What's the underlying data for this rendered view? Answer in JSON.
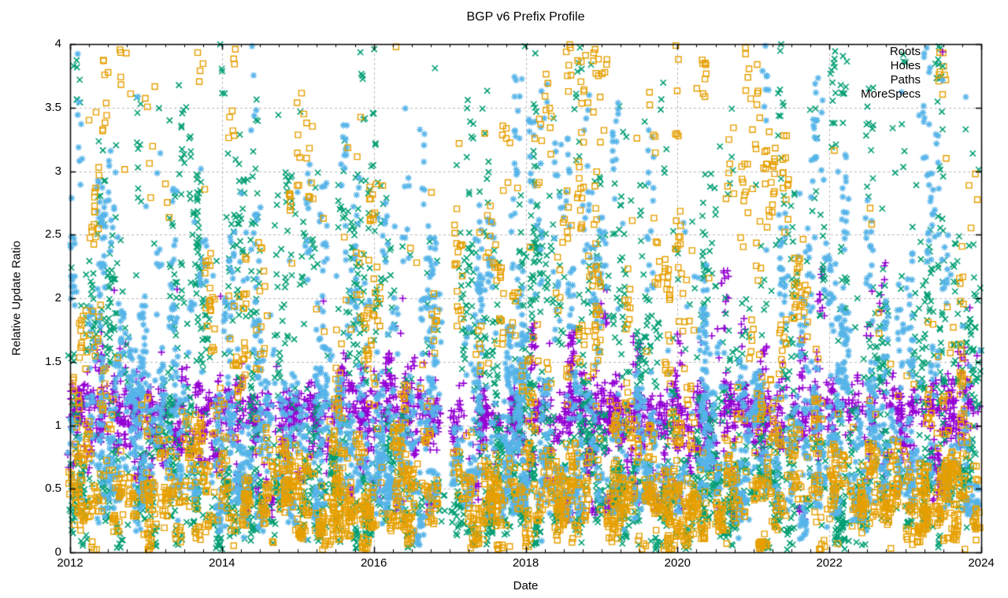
{
  "chart_data": {
    "type": "scatter",
    "title": "BGP v6 Prefix Profile",
    "xlabel": "Date",
    "ylabel": "Relative Update Ratio",
    "xlim": [
      2012,
      2024
    ],
    "ylim": [
      0,
      4
    ],
    "xticks": {
      "values": [
        2012,
        2014,
        2016,
        2018,
        2020,
        2022,
        2024
      ],
      "labels": [
        "2012",
        "2014",
        "2016",
        "2018",
        "2020",
        "2022",
        "2024"
      ],
      "minor_interval": 0.25
    },
    "yticks": {
      "values": [
        0,
        0.5,
        1,
        1.5,
        2,
        2.5,
        3,
        3.5,
        4
      ],
      "labels": [
        "0",
        "0.5",
        "1",
        "1.5",
        "2",
        "2.5",
        "3",
        "3.5",
        "4"
      ]
    },
    "grid": {
      "show": true,
      "color": "#b8b8b8",
      "style": "dashed"
    },
    "background": "#ffffff",
    "axis_color": "#000000",
    "legend": {
      "position": "top-right",
      "frame": false
    },
    "seed": 7,
    "data_gaps": [
      {
        "from": 2016.86,
        "to": 2017.06,
        "skip_probability": 0.97
      },
      {
        "from": 2021.92,
        "to": 2022.0,
        "skip_probability": 0.8
      }
    ],
    "series": [
      {
        "name": "Roots",
        "marker": "plus",
        "color": "#9400d3",
        "count": 3000,
        "y_distribution": [
          {
            "w": 0.56,
            "type": "normal",
            "mu": 1.13,
            "sigma": 0.09
          },
          {
            "w": 0.22,
            "type": "normal",
            "mu": 0.95,
            "sigma": 0.17
          },
          {
            "w": 0.155,
            "type": "uniform",
            "lo": 0.3,
            "hi": 0.95
          },
          {
            "w": 0.05,
            "type": "uniform",
            "lo": 1.35,
            "hi": 1.75
          },
          {
            "w": 0.015,
            "type": "uniform",
            "lo": 1.75,
            "hi": 2.1
          }
        ],
        "streak": {
          "fraction": 0.5,
          "min": 4,
          "max": 12,
          "x_jitter": 0.05,
          "y_spread_base": 0.05,
          "y_spread_scale": 0.08
        }
      },
      {
        "name": "Holes",
        "marker": "cross",
        "color": "#009e73",
        "count": 3400,
        "y_distribution": [
          {
            "w": 0.32,
            "type": "normal",
            "mu": 0.45,
            "sigma": 0.22
          },
          {
            "w": 0.2,
            "type": "uniform",
            "lo": 0.05,
            "hi": 1.05
          },
          {
            "w": 0.14,
            "type": "normal",
            "mu": 1.3,
            "sigma": 0.3
          },
          {
            "w": 0.23,
            "type": "uniform",
            "lo": 1.5,
            "hi": 2.6
          },
          {
            "w": 0.08,
            "type": "uniform",
            "lo": 2.6,
            "hi": 3.5
          },
          {
            "w": 0.03,
            "type": "uniform",
            "lo": 3.5,
            "hi": 4.02
          }
        ],
        "streak": {
          "fraction": 0.45,
          "min": 4,
          "max": 12,
          "x_jitter": 0.05,
          "y_spread_base": 0.1,
          "y_spread_scale": 0.14
        }
      },
      {
        "name": "Paths",
        "marker": "asterisk",
        "color": "#56b4e9",
        "count": 3600,
        "y_distribution": [
          {
            "w": 0.42,
            "type": "normal",
            "mu": 0.55,
            "sigma": 0.18
          },
          {
            "w": 0.26,
            "type": "normal",
            "mu": 1.05,
            "sigma": 0.2
          },
          {
            "w": 0.18,
            "type": "uniform",
            "lo": 1.25,
            "hi": 2.15
          },
          {
            "w": 0.12,
            "type": "uniform",
            "lo": 2.15,
            "hi": 3.05
          },
          {
            "w": 0.02,
            "type": "uniform",
            "lo": 3.05,
            "hi": 3.65
          }
        ],
        "streak": {
          "fraction": 0.5,
          "min": 5,
          "max": 14,
          "x_jitter": 0.05,
          "y_spread_base": 0.08,
          "y_spread_scale": 0.12
        }
      },
      {
        "name": "MoreSpecs",
        "marker": "square-open",
        "color": "#e69f00",
        "count": 3200,
        "y_distribution": [
          {
            "w": 0.45,
            "type": "normal",
            "mu": 0.35,
            "sigma": 0.16
          },
          {
            "w": 0.22,
            "type": "normal",
            "mu": 0.65,
            "sigma": 0.18
          },
          {
            "w": 0.16,
            "type": "uniform",
            "lo": 0.85,
            "hi": 1.8
          },
          {
            "w": 0.12,
            "type": "uniform",
            "lo": 1.8,
            "hi": 2.9
          },
          {
            "w": 0.05,
            "type": "uniform",
            "lo": 2.9,
            "hi": 4.02
          }
        ],
        "streak": {
          "fraction": 0.45,
          "min": 4,
          "max": 12,
          "x_jitter": 0.05,
          "y_spread_base": 0.06,
          "y_spread_scale": 0.1
        }
      }
    ]
  }
}
